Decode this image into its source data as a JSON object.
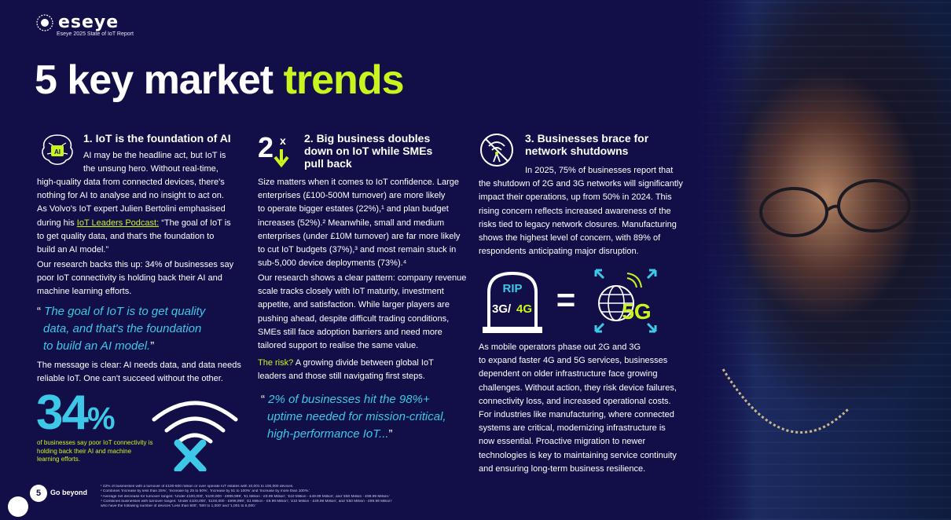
{
  "brand": {
    "name": "eseye",
    "report": "Eseye 2025 State of IoT Report"
  },
  "title": {
    "lead": "5 key market trends",
    "lead_plain": "5 key market",
    "lead_accent": "trends"
  },
  "col1": {
    "icon": "ai-brain-icon",
    "heading": "1. IoT is the foundation of AI",
    "p1_lines": [
      "AI may be the headline act, but IoT is",
      "the unsung hero. Without real-time,",
      "high-quality data from connected devices, there's",
      "nothing for AI to analyse and no insight to act on.",
      "As Volvo's IoT expert Julien Bertolini emphasised"
    ],
    "p1_link_prefix": "during his ",
    "p1_link": "IoT Leaders Podcast:",
    "p1_after_link": " “The goal of IoT is",
    "p1_tail": [
      "to get quality data, and that's the foundation to",
      "build an AI model.”"
    ],
    "p2": [
      "Our research backs this up: 34% of businesses say",
      "poor IoT connectivity is holding back their AI and",
      "machine learning efforts."
    ],
    "quote": [
      "The goal of IoT is to get quality",
      "data, and that's the foundation",
      "to build an AI model."
    ],
    "p3": [
      "The message is clear: AI needs data, and data needs",
      "reliable IoT. One can't succeed without the other."
    ],
    "stat_value": "34",
    "stat_unit": "%",
    "stat_caption": "of businesses say poor IoT connectivity is holding back their AI and machine learning efforts.",
    "graphic_icon": "wifi-x-icon"
  },
  "col2": {
    "icon_text": "2",
    "icon_sup": "x",
    "icon": "arrow-down-icon",
    "heading": [
      "2. Big business doubles",
      "down on IoT while SMEs",
      "pull back"
    ],
    "p1": [
      "Size matters when it comes to IoT confidence. Large",
      "enterprises (£100-500M turnover) are more likely",
      "to operate bigger estates (22%),¹ and plan budget",
      "increases (52%).² Meanwhile, small and medium",
      "enterprises (under £10M turnover) are far more likely",
      "to cut IoT budgets (37%),³ and most remain stuck in",
      "sub-5,000 device deployments (73%).⁴"
    ],
    "p2": [
      "Our research shows a clear pattern: company revenue",
      "scale tracks closely with IoT maturity, investment",
      "appetite, and satisfaction. While larger players are",
      "pushing ahead, despite difficult trading conditions,",
      "SMEs still face adoption barriers and need more",
      "tailored support to realise the same value."
    ],
    "risk_label": "The risk?",
    "risk_line1": " A growing divide between global IoT",
    "risk_line2": "leaders and those still navigating first steps.",
    "quote": [
      "2% of businesses hit the 98%+",
      "uptime needed for mission-critical,",
      "high-performance IoT..."
    ]
  },
  "col3": {
    "icon": "no-signal-icon",
    "heading": [
      "3. Businesses brace for",
      "network shutdowns"
    ],
    "p1": [
      "In 2025, 75% of businesses report that",
      "the shutdown of 2G and 3G networks will significantly",
      "impact their operations, up from 50% in 2024. This",
      "rising concern reflects increased awareness of the",
      "risks tied to legacy network closures. Manufacturing",
      "shows the highest level of concern, with 89% of",
      "respondents anticipating major disruption."
    ],
    "graphic": {
      "tomb_top": "RIP",
      "tomb_bottom_a": "3G/",
      "tomb_bottom_b": "4G",
      "equals": "=",
      "fiveg": "5G",
      "tomb_icon": "tombstone-icon",
      "globe_icon": "globe-icon"
    },
    "p2": [
      "As mobile operators phase out 2G and 3G",
      "to expand faster 4G and 5G services, businesses",
      "dependent on older infrastructure face growing",
      "challenges. Without action, they risk device failures,",
      "connectivity loss, and increased operational costs.",
      "For industries like manufacturing, where connected",
      "systems are critical, modernizing infrastructure is",
      "now essential. Proactive migration to newer",
      "technologies is key to maintaining service continuity",
      "and ensuring long-term business resilience."
    ]
  },
  "footer": {
    "page_number": "5",
    "tagline": "Go beyond",
    "footnotes": [
      "¹  22% of businesses with a turnover of £100-500 million or over operate IoT estates with 10,001 to 100,000 devices.",
      "²  Combines 'Increase by less than 25%', 'Increase by 25 to 50%', 'Increase by 51 to 100%' and 'Increase by more than 100%.'",
      "³  Average net decrease for turnover ranges: 'Under £100,000', '£100,000 - £999,999', '£1 Million - £9.99 Million', '£10 Million - £49.99 Million', and '£50 Million - £99.99 Million.'",
      "⁴  Combines businesses with turnover ranges: 'Under £100,000', '£100,000 - £999,999', '£1 Million - £9.99 Million', '£10 Million - £49.99 Million', and '£50 Million - £99.99 Million'",
      "    who have the following number of devices 'Less than 500', '500 to 1,000' and '1,001 to 5,000.'"
    ]
  },
  "colors": {
    "background": "#120f48",
    "accent_green": "#c8f51e",
    "accent_cyan": "#3cc8e6"
  }
}
